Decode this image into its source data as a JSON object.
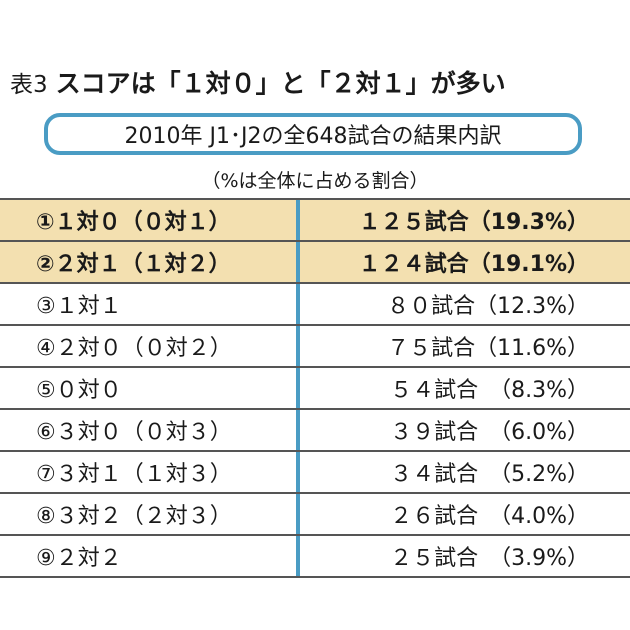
{
  "title": {
    "prefix": "表3",
    "main": "スコアは「１対０」と「２対１」が多い"
  },
  "subtitle": "2010年 J1･J2の全648試合の結果内訳",
  "note": "（%は全体に占める割合）",
  "colors": {
    "accent": "#4a9cc4",
    "highlight": "#f3e0b0"
  },
  "rows": [
    {
      "score": "①１対０（０対１）",
      "result": "１２５試合（19.3%）",
      "highlight": true
    },
    {
      "score": "②２対１（１対２）",
      "result": "１２４試合（19.1%）",
      "highlight": true
    },
    {
      "score": "③１対１",
      "result": "８０試合（12.3%）",
      "highlight": false
    },
    {
      "score": "④２対０（０対２）",
      "result": "７５試合（11.6%）",
      "highlight": false
    },
    {
      "score": "⑤０対０",
      "result": "５４試合　（8.3%）",
      "highlight": false
    },
    {
      "score": "⑥３対０（０対３）",
      "result": "３９試合　（6.0%）",
      "highlight": false
    },
    {
      "score": "⑦３対１（１対３）",
      "result": "３４試合　（5.2%）",
      "highlight": false
    },
    {
      "score": "⑧３対２（２対３）",
      "result": "２６試合　（4.0%）",
      "highlight": false
    },
    {
      "score": "⑨２対２",
      "result": "２５試合　（3.9%）",
      "highlight": false
    }
  ]
}
